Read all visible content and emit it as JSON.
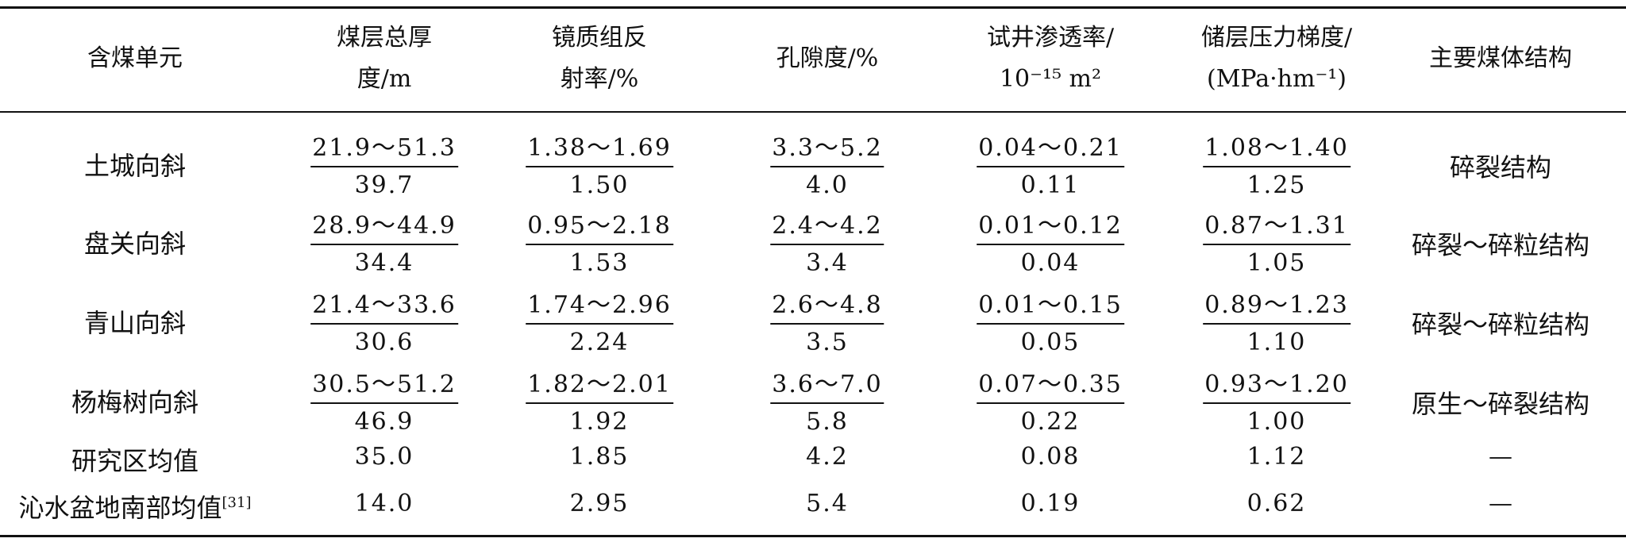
{
  "table": {
    "headers": [
      {
        "lines": [
          "含煤单元"
        ]
      },
      {
        "lines": [
          "煤层总厚",
          "度/m"
        ]
      },
      {
        "lines": [
          "镜质组反",
          "射率/%"
        ]
      },
      {
        "lines": [
          "孔隙度/%"
        ]
      },
      {
        "lines": [
          "试井渗透率/",
          "10⁻¹⁵ m²"
        ]
      },
      {
        "lines": [
          "储层压力梯度/",
          "(MPa·hm⁻¹)"
        ]
      },
      {
        "lines": [
          "主要煤体结构"
        ]
      }
    ],
    "rows": [
      {
        "unit": "土城向斜",
        "thickness": {
          "range": "21.9～51.3",
          "mean": "39.7"
        },
        "reflectance": {
          "range": "1.38～1.69",
          "mean": "1.50"
        },
        "porosity": {
          "range": "3.3～5.2",
          "mean": "4.0"
        },
        "permeability": {
          "range": "0.04～0.21",
          "mean": "0.11"
        },
        "pressure": {
          "range": "1.08～1.40",
          "mean": "1.25"
        },
        "structure": "碎裂结构"
      },
      {
        "unit": "盘关向斜",
        "thickness": {
          "range": "28.9～44.9",
          "mean": "34.4"
        },
        "reflectance": {
          "range": "0.95～2.18",
          "mean": "1.53"
        },
        "porosity": {
          "range": "2.4～4.2",
          "mean": "3.4"
        },
        "permeability": {
          "range": "0.01～0.12",
          "mean": "0.04"
        },
        "pressure": {
          "range": "0.87～1.31",
          "mean": "1.05"
        },
        "structure": "碎裂～碎粒结构"
      },
      {
        "unit": "青山向斜",
        "thickness": {
          "range": "21.4～33.6",
          "mean": "30.6"
        },
        "reflectance": {
          "range": "1.74～2.96",
          "mean": "2.24"
        },
        "porosity": {
          "range": "2.6～4.8",
          "mean": "3.5"
        },
        "permeability": {
          "range": "0.01～0.15",
          "mean": "0.05"
        },
        "pressure": {
          "range": "0.89～1.23",
          "mean": "1.10"
        },
        "structure": "碎裂～碎粒结构"
      },
      {
        "unit": "杨梅树向斜",
        "thickness": {
          "range": "30.5～51.2",
          "mean": "46.9"
        },
        "reflectance": {
          "range": "1.82～2.01",
          "mean": "1.92"
        },
        "porosity": {
          "range": "3.6～7.0",
          "mean": "5.8"
        },
        "permeability": {
          "range": "0.07～0.35",
          "mean": "0.22"
        },
        "pressure": {
          "range": "0.93～1.20",
          "mean": "1.00"
        },
        "structure": "原生～碎裂结构"
      }
    ],
    "summary_rows": [
      {
        "unit": "研究区均值",
        "ref": "",
        "values": [
          "35.0",
          "1.85",
          "4.2",
          "0.08",
          "1.12",
          "—"
        ]
      },
      {
        "unit": "沁水盆地南部均值",
        "ref": "[31]",
        "values": [
          "14.0",
          "2.95",
          "5.4",
          "0.19",
          "0.62",
          "—"
        ]
      }
    ]
  }
}
